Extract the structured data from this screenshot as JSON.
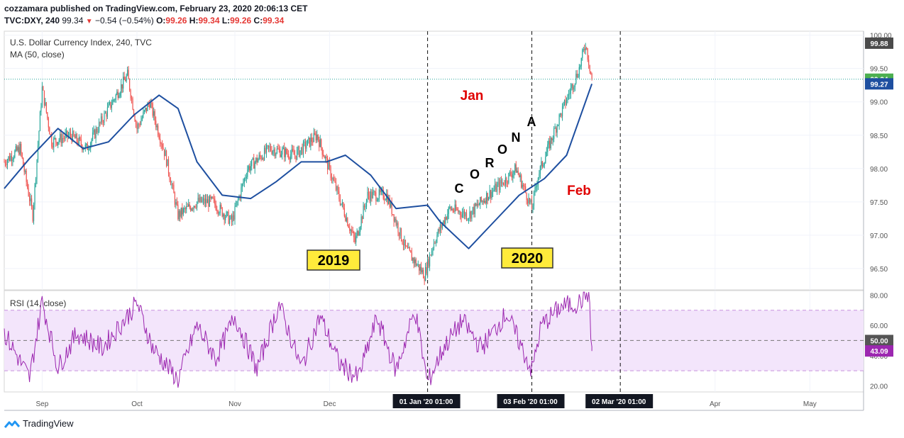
{
  "header": {
    "publisher_line": "cozzamara published on TradingView.com, February 23, 2020 20:06:13 CET",
    "symbol": "TVC:DXY, 240",
    "last": "99.34",
    "change": "−0.54 (−0.54%)",
    "o_label": "O:",
    "o": "99.26",
    "h_label": "H:",
    "h": "99.34",
    "l_label": "L:",
    "l": "99.26",
    "c_label": "C:",
    "c": "99.34"
  },
  "brand": {
    "name": "TradingView"
  },
  "colors": {
    "up": "#26a69a",
    "down": "#ef5350",
    "ma": "#1e4fa0",
    "rsi": "#9c27b0",
    "rsi_band": "#f3e5fb",
    "annotation_red": "#e00000",
    "label_yellow": "#ffeb3b"
  },
  "chart_data": [
    {
      "type": "candlestick",
      "title": "U.S. Dollar Currency Index, 240, TVC",
      "indicator": "MA (50, close)",
      "x_ticks": [
        "Sep",
        "Oct",
        "Nov",
        "Dec",
        "Apr",
        "May"
      ],
      "x_markers": [
        "01 Jan '20  01:00",
        "03 Feb '20  01:00",
        "02 Mar '20  01:00"
      ],
      "y_ticks": [
        "100.00",
        "99.50",
        "99.00",
        "98.50",
        "98.00",
        "97.50",
        "97.00",
        "96.50"
      ],
      "ylim": [
        96.18,
        100.06
      ],
      "price_labels": {
        "high": "99.88",
        "last": "99.34",
        "ma": "99.27"
      },
      "close_path_approx": {
        "dates": [
          "2019-08-20",
          "2019-08-25",
          "2019-08-29",
          "2019-09-01",
          "2019-09-04",
          "2019-09-10",
          "2019-09-15",
          "2019-09-22",
          "2019-09-28",
          "2019-10-01",
          "2019-10-05",
          "2019-10-10",
          "2019-10-14",
          "2019-10-20",
          "2019-10-25",
          "2019-10-31",
          "2019-11-05",
          "2019-11-12",
          "2019-11-20",
          "2019-11-27",
          "2019-12-03",
          "2019-12-09",
          "2019-12-13",
          "2019-12-19",
          "2019-12-25",
          "2019-12-31",
          "2020-01-03",
          "2020-01-08",
          "2020-01-14",
          "2020-01-20",
          "2020-01-25",
          "2020-01-29",
          "2020-02-03",
          "2020-02-05",
          "2020-02-12",
          "2020-02-18",
          "2020-02-20",
          "2020-02-22"
        ],
        "close": [
          98.1,
          98.3,
          97.3,
          99.2,
          98.4,
          98.5,
          98.3,
          98.9,
          99.4,
          98.6,
          99.0,
          98.2,
          97.3,
          97.5,
          97.5,
          97.2,
          98.0,
          98.3,
          98.2,
          98.5,
          97.7,
          96.9,
          97.6,
          97.6,
          96.8,
          96.4,
          96.9,
          97.4,
          97.3,
          97.6,
          97.8,
          98.0,
          97.4,
          97.9,
          98.8,
          99.5,
          99.88,
          99.34
        ]
      },
      "ma_path_approx": {
        "dates": [
          "2019-08-20",
          "2019-08-28",
          "2019-09-06",
          "2019-09-14",
          "2019-09-22",
          "2019-09-30",
          "2019-10-08",
          "2019-10-14",
          "2019-10-20",
          "2019-10-28",
          "2019-11-06",
          "2019-11-14",
          "2019-11-22",
          "2019-11-30",
          "2019-12-06",
          "2019-12-14",
          "2019-12-22",
          "2020-01-01",
          "2020-01-05",
          "2020-01-14",
          "2020-01-22",
          "2020-01-30",
          "2020-02-07",
          "2020-02-14",
          "2020-02-22"
        ],
        "value": [
          97.7,
          98.15,
          98.6,
          98.3,
          98.4,
          98.8,
          99.1,
          98.9,
          98.1,
          97.6,
          97.55,
          97.8,
          98.1,
          98.1,
          98.2,
          97.9,
          97.4,
          97.45,
          97.2,
          96.8,
          97.2,
          97.6,
          97.85,
          98.2,
          99.27
        ]
      }
    },
    {
      "type": "line",
      "title": "RSI (14, close)",
      "y_ticks": [
        "80.00",
        "60.00",
        "40.00",
        "20.00"
      ],
      "ylim": [
        16,
        83
      ],
      "band": [
        30,
        70
      ],
      "midline": 50,
      "labels": {
        "mid": "50.00",
        "last": "43.09"
      },
      "path_approx": {
        "dates": [
          "2019-08-20",
          "2019-08-28",
          "2019-09-01",
          "2019-09-06",
          "2019-09-12",
          "2019-09-20",
          "2019-09-28",
          "2019-10-01",
          "2019-10-06",
          "2019-10-14",
          "2019-10-20",
          "2019-10-26",
          "2019-11-01",
          "2019-11-08",
          "2019-11-15",
          "2019-11-22",
          "2019-11-28",
          "2019-12-04",
          "2019-12-10",
          "2019-12-16",
          "2019-12-22",
          "2019-12-28",
          "2020-01-01",
          "2020-01-06",
          "2020-01-12",
          "2020-01-18",
          "2020-01-26",
          "2020-02-03",
          "2020-02-06",
          "2020-02-12",
          "2020-02-18",
          "2020-02-21",
          "2020-02-22"
        ],
        "value": [
          55,
          25,
          76,
          32,
          55,
          45,
          66,
          75,
          45,
          24,
          60,
          38,
          66,
          31,
          74,
          32,
          66,
          35,
          25,
          65,
          30,
          70,
          22,
          45,
          63,
          45,
          68,
          30,
          60,
          72,
          75,
          82,
          43.09
        ]
      }
    }
  ],
  "annotations": {
    "year1": "2019",
    "year2": "2020",
    "jan": "Jan",
    "feb": "Feb",
    "corona_letters": [
      "C",
      "O",
      "R",
      "O",
      "N",
      "A"
    ]
  }
}
